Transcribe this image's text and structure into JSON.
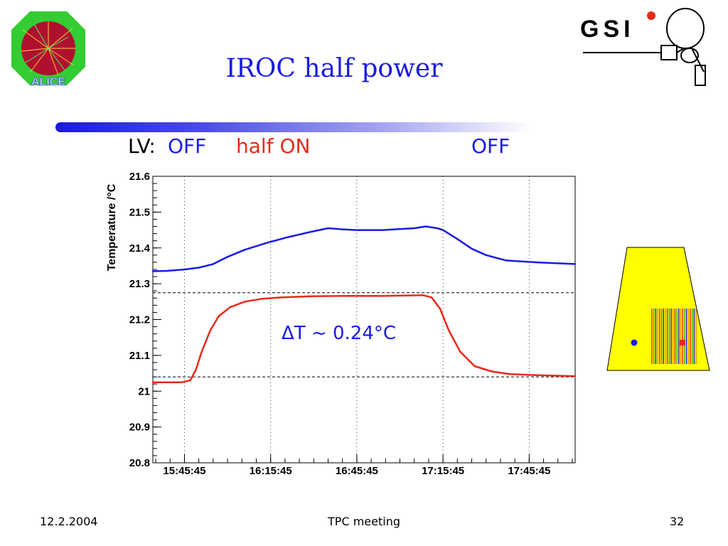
{
  "slide": {
    "title": "IROC half power",
    "lv_prefix": "LV:",
    "lv_off_1": "OFF",
    "lv_half_on": "half ON",
    "lv_off_2": "OFF"
  },
  "logos": {
    "alice_text": "ALICE",
    "gsi_text": "GSI"
  },
  "footer": {
    "date": "12.2.2004",
    "center": "TPC meeting",
    "page": "32"
  },
  "colors": {
    "title": "#1a1ae6",
    "series_upper": "#1a1ae6",
    "series_lower": "#e62a1a",
    "chamber_fill": "#ffff00"
  },
  "chart_data": {
    "type": "line",
    "title": "",
    "xlabel": "",
    "ylabel": "Temperature /°C",
    "ylim": [
      20.8,
      21.6
    ],
    "yticks": [
      "20.8",
      "20.9",
      "21",
      "21.1",
      "21.2",
      "21.3",
      "21.4",
      "21.5",
      "21.6"
    ],
    "xtick_labels": [
      "15:45:45",
      "16:15:45",
      "16:45:45",
      "17:15:45",
      "17:45:45"
    ],
    "x_minutes_range": [
      0,
      147
    ],
    "xtick_minutes": [
      11,
      41,
      71,
      101,
      131
    ],
    "series": [
      {
        "color": "#1a1ae6",
        "x": [
          0,
          5,
          11,
          16,
          21,
          26,
          32,
          40,
          47,
          55,
          61,
          66,
          71,
          80,
          91,
          95,
          99,
          101,
          106,
          111,
          116,
          123,
          133,
          147
        ],
        "y": [
          21.335,
          21.336,
          21.34,
          21.345,
          21.355,
          21.375,
          21.395,
          21.415,
          21.43,
          21.445,
          21.455,
          21.452,
          21.45,
          21.45,
          21.455,
          21.46,
          21.455,
          21.45,
          21.425,
          21.398,
          21.38,
          21.365,
          21.36,
          21.355
        ]
      },
      {
        "color": "#e62a1a",
        "x": [
          0,
          10,
          13,
          15,
          17,
          20,
          23,
          27,
          32,
          38,
          45,
          55,
          66,
          80,
          94,
          97,
          100,
          103,
          107,
          112,
          118,
          124,
          133,
          147
        ],
        "y": [
          21.025,
          21.025,
          21.03,
          21.06,
          21.11,
          21.17,
          21.21,
          21.235,
          21.25,
          21.258,
          21.262,
          21.265,
          21.266,
          21.266,
          21.268,
          21.262,
          21.23,
          21.17,
          21.11,
          21.07,
          21.055,
          21.048,
          21.045,
          21.042
        ]
      }
    ],
    "reference_lines_y": [
      21.275,
      21.04
    ],
    "annotation": "ΔT ~ 0.24°C"
  }
}
